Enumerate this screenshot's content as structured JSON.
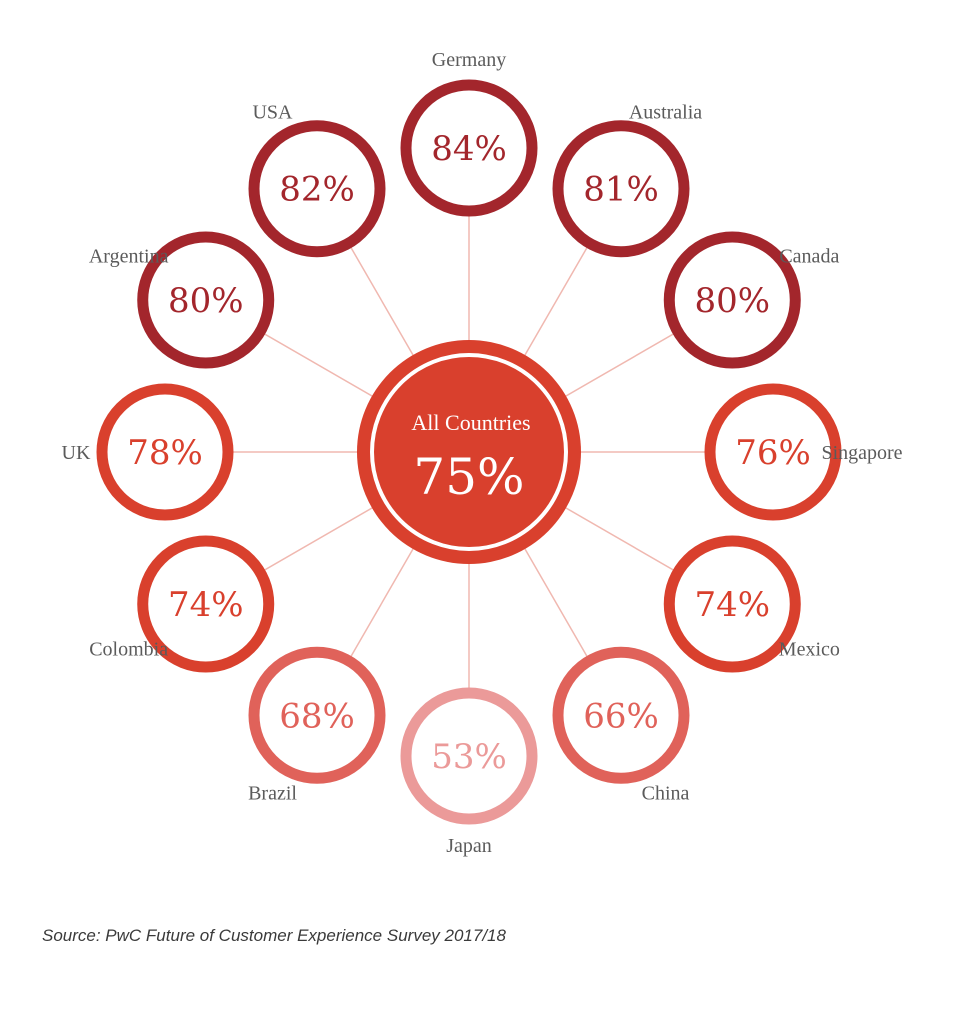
{
  "chart_data": {
    "type": "radial-bubble",
    "center": {
      "label": "All Countries",
      "value": 75,
      "value_text": "75%"
    },
    "items": [
      {
        "country": "Germany",
        "value": 84,
        "value_text": "84%"
      },
      {
        "country": "Australia",
        "value": 81,
        "value_text": "81%"
      },
      {
        "country": "Canada",
        "value": 80,
        "value_text": "80%"
      },
      {
        "country": "Singapore",
        "value": 76,
        "value_text": "76%"
      },
      {
        "country": "Mexico",
        "value": 74,
        "value_text": "74%"
      },
      {
        "country": "China",
        "value": 66,
        "value_text": "66%"
      },
      {
        "country": "Japan",
        "value": 53,
        "value_text": "53%"
      },
      {
        "country": "Brazil",
        "value": 68,
        "value_text": "68%"
      },
      {
        "country": "Colombia",
        "value": 74,
        "value_text": "74%"
      },
      {
        "country": "UK",
        "value": 78,
        "value_text": "78%"
      },
      {
        "country": "Argentina",
        "value": 80,
        "value_text": "80%"
      },
      {
        "country": "USA",
        "value": 82,
        "value_text": "82%"
      }
    ],
    "colors": {
      "high": "#a3262c",
      "mid": "#d9402d",
      "low": "#e0625a",
      "lowest": "#eb9a99",
      "center": "#d9402d",
      "connector": "#f0b8b0"
    }
  },
  "source": "Source: PwC Future of Customer Experience Survey 2017/18"
}
